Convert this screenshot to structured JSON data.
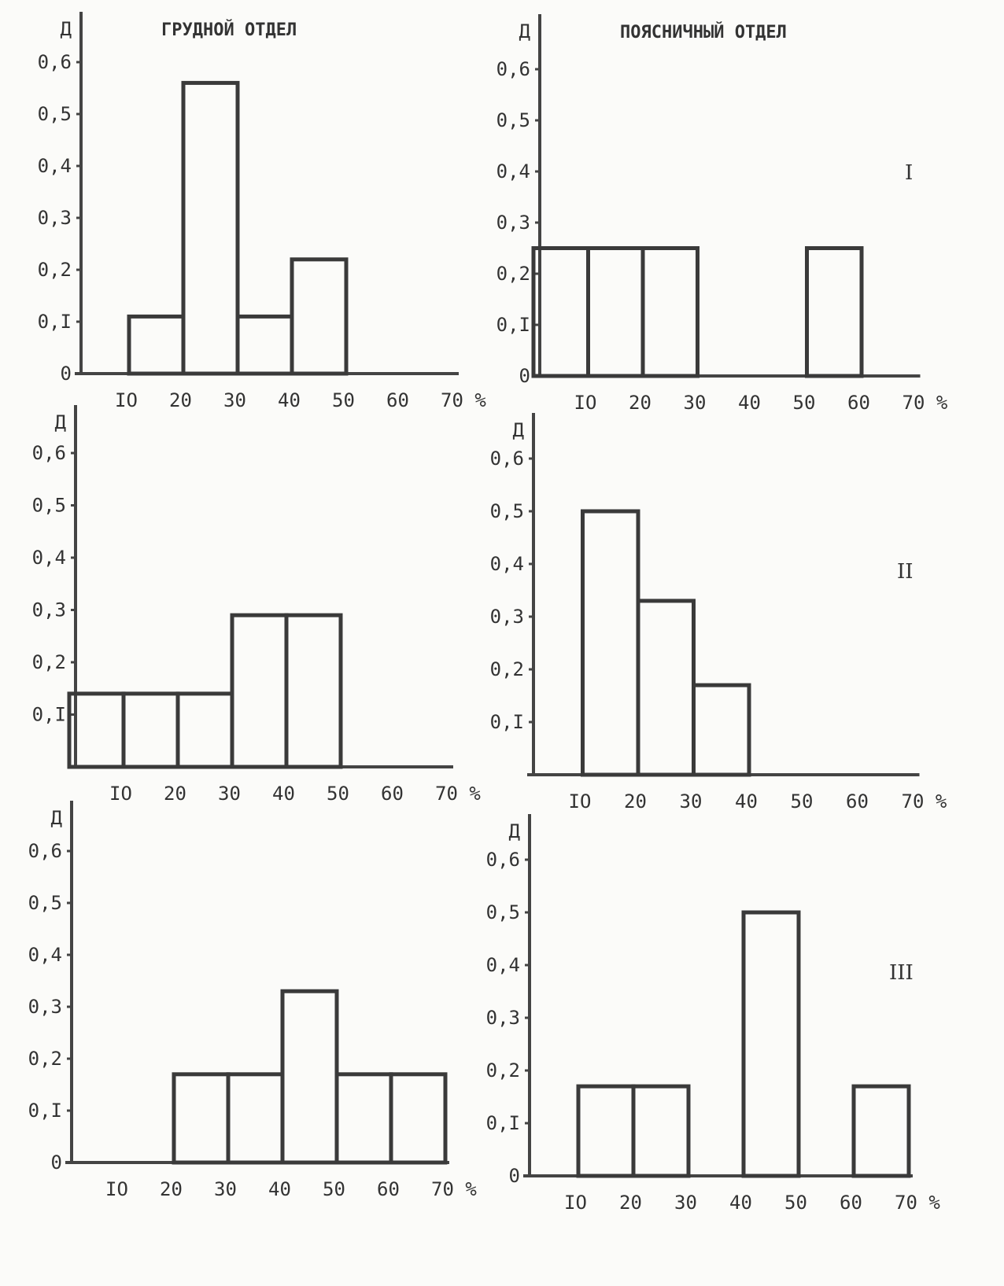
{
  "chart_data": [
    {
      "type": "bar",
      "title": "ГРУДНОЙ ОТДЕЛ",
      "group": "I",
      "ylabel": "Д",
      "xlabel": "%",
      "ylim": [
        0,
        0.6
      ],
      "xlim": [
        0,
        70
      ],
      "bins": [
        [
          10,
          20
        ],
        [
          20,
          30
        ],
        [
          30,
          40
        ],
        [
          40,
          50
        ]
      ],
      "values": [
        0.11,
        0.56,
        0.11,
        0.22
      ],
      "yticks": [
        "0",
        "0,I",
        "0,2",
        "0,3",
        "0,4",
        "0,5",
        "0,6"
      ],
      "xticks": [
        "IO",
        "20",
        "30",
        "40",
        "50",
        "60",
        "70 %"
      ]
    },
    {
      "type": "bar",
      "title": "ПОЯСНИЧНЫЙ ОТДЕЛ",
      "group": "I",
      "ylabel": "Д",
      "xlabel": "%",
      "ylim": [
        0,
        0.6
      ],
      "xlim": [
        0,
        70
      ],
      "bins": [
        [
          0,
          10
        ],
        [
          10,
          20
        ],
        [
          20,
          30
        ],
        [
          50,
          60
        ]
      ],
      "values": [
        0.25,
        0.25,
        0.25,
        0.25
      ],
      "yticks": [
        "0",
        "0,I",
        "0,2",
        "0,3",
        "0,4",
        "0,5",
        "0,6"
      ],
      "xticks": [
        "IO",
        "20",
        "30",
        "40",
        "50",
        "60",
        "70 %"
      ]
    },
    {
      "type": "bar",
      "title": "",
      "group": "II",
      "ylabel": "Д",
      "xlabel": "%",
      "ylim": [
        0,
        0.6
      ],
      "xlim": [
        0,
        70
      ],
      "bins": [
        [
          0,
          10
        ],
        [
          10,
          20
        ],
        [
          20,
          30
        ],
        [
          30,
          40
        ],
        [
          40,
          50
        ]
      ],
      "values": [
        0.14,
        0.14,
        0.14,
        0.29,
        0.29
      ],
      "yticks": [
        "",
        "0,I",
        "0,2",
        "0,3",
        "0,4",
        "0,5",
        "0,6"
      ],
      "xticks": [
        "IO",
        "20",
        "30",
        "40",
        "50",
        "60",
        "70 %"
      ]
    },
    {
      "type": "bar",
      "title": "",
      "group": "II",
      "ylabel": "Д",
      "xlabel": "%",
      "ylim": [
        0,
        0.6
      ],
      "xlim": [
        0,
        70
      ],
      "bins": [
        [
          10,
          20
        ],
        [
          20,
          30
        ],
        [
          30,
          40
        ]
      ],
      "values": [
        0.5,
        0.33,
        0.17
      ],
      "yticks": [
        "",
        "0,I",
        "0,2",
        "0,3",
        "0,4",
        "0,5",
        "0,6"
      ],
      "xticks": [
        "IO",
        "20",
        "30",
        "40",
        "50",
        "60",
        "70 %"
      ]
    },
    {
      "type": "bar",
      "title": "",
      "group": "III",
      "ylabel": "Д",
      "xlabel": "%",
      "ylim": [
        0,
        0.6
      ],
      "xlim": [
        0,
        70
      ],
      "bins": [
        [
          20,
          30
        ],
        [
          30,
          40
        ],
        [
          40,
          50
        ],
        [
          50,
          60
        ],
        [
          60,
          70
        ]
      ],
      "values": [
        0.17,
        0.17,
        0.33,
        0.17,
        0.17
      ],
      "yticks": [
        "0",
        "0,I",
        "0,2",
        "0,3",
        "0,4",
        "0,5",
        "0,6"
      ],
      "xticks": [
        "IO",
        "20",
        "30",
        "40",
        "50",
        "60",
        "70 %"
      ]
    },
    {
      "type": "bar",
      "title": "",
      "group": "III",
      "ylabel": "Д",
      "xlabel": "%",
      "ylim": [
        0,
        0.6
      ],
      "xlim": [
        0,
        70
      ],
      "bins": [
        [
          10,
          20
        ],
        [
          20,
          30
        ],
        [
          40,
          50
        ],
        [
          60,
          70
        ]
      ],
      "values": [
        0.17,
        0.17,
        0.5,
        0.17
      ],
      "yticks": [
        "0",
        "0,I",
        "0,2",
        "0,3",
        "0,4",
        "0,5",
        "0,6"
      ],
      "xticks": [
        "IO",
        "20",
        "30",
        "40",
        "50",
        "60",
        "70 %"
      ]
    }
  ],
  "row_labels": [
    "I",
    "II",
    "III"
  ]
}
